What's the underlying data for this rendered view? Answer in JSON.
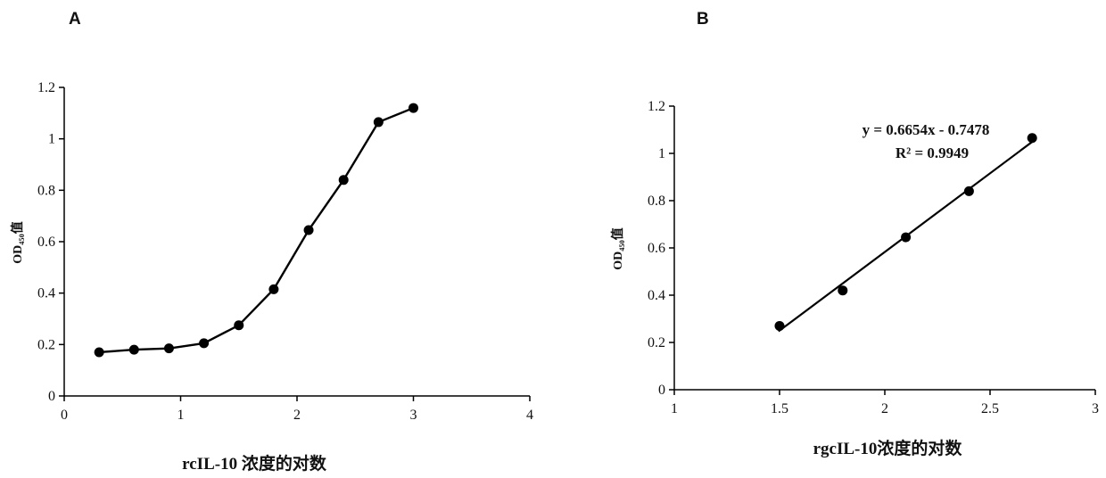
{
  "chart_data": [
    {
      "panel": "A",
      "type": "line",
      "xlabel": "rcIL-10 浓度的对数",
      "ylabel": "OD₄₅₀值",
      "xlim": [
        0,
        4
      ],
      "ylim": [
        0,
        1.2
      ],
      "xticks": [
        "0",
        "1",
        "2",
        "3",
        "4"
      ],
      "yticks": [
        "0",
        "0.2",
        "0.4",
        "0.6",
        "0.8",
        "1",
        "1.2"
      ],
      "grid": false,
      "legend": "none",
      "series": [
        {
          "x": [
            0.3,
            0.6,
            0.9,
            1.2,
            1.5,
            1.8,
            2.1,
            2.4,
            2.7,
            3.0
          ],
          "y": [
            0.17,
            0.18,
            0.185,
            0.205,
            0.275,
            0.415,
            0.645,
            0.84,
            1.065,
            1.12
          ]
        }
      ]
    },
    {
      "panel": "B",
      "type": "scatter",
      "xlabel": "rgcIL-10浓度的对数",
      "ylabel": "OD₄₅₀值",
      "xlim": [
        1,
        3
      ],
      "ylim": [
        0,
        1.2
      ],
      "xticks": [
        "1",
        "1.5",
        "2",
        "2.5",
        "3"
      ],
      "yticks": [
        "0",
        "0.2",
        "0.4",
        "0.6",
        "0.8",
        "1",
        "1.2"
      ],
      "grid": false,
      "legend": "none",
      "series": [
        {
          "x": [
            1.5,
            1.8,
            2.1,
            2.4,
            2.7
          ],
          "y": [
            0.27,
            0.42,
            0.645,
            0.84,
            1.065
          ]
        }
      ],
      "trendline": {
        "slope": 0.6654,
        "intercept": -0.7478,
        "x_range": [
          1.5,
          2.7
        ]
      },
      "annotations": [
        "y = 0.6654x - 0.7478",
        "R² = 0.9949"
      ]
    }
  ]
}
